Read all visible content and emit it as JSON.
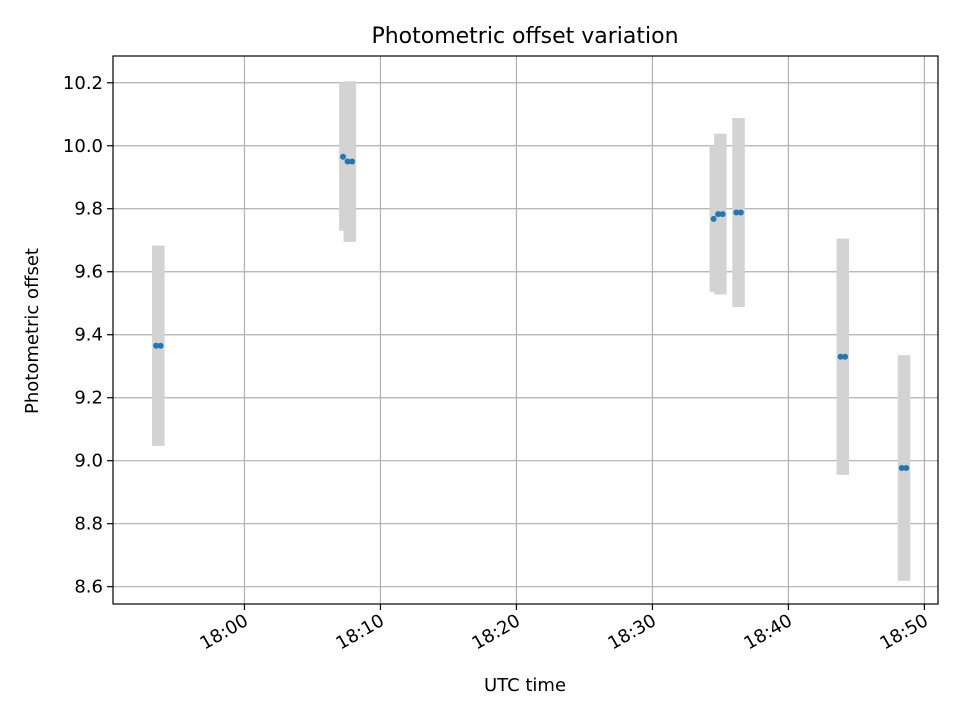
{
  "chart_data": {
    "type": "scatter",
    "title": "Photometric offset variation",
    "xlabel": "UTC time",
    "ylabel": "Photometric offset",
    "x_ticks": [
      "18:00",
      "18:10",
      "18:20",
      "18:30",
      "18:40",
      "18:50"
    ],
    "y_ticks": [
      "8.6",
      "8.8",
      "9.0",
      "9.2",
      "9.4",
      "9.6",
      "9.8",
      "10.0",
      "10.2"
    ],
    "xlim": [
      "17:50:20",
      "18:51:00"
    ],
    "ylim": [
      8.545,
      10.285
    ],
    "grid": true,
    "marker_color": "#1f77b4",
    "errorbar_color": "#d3d3d3",
    "points": [
      {
        "time": "17:53:30",
        "y": 9.365,
        "err": 0.318
      },
      {
        "time": "17:53:50",
        "y": 9.365,
        "err": 0.318
      },
      {
        "time": "18:07:15",
        "y": 9.965,
        "err": 0.235
      },
      {
        "time": "18:07:35",
        "y": 9.95,
        "err": 0.255
      },
      {
        "time": "18:07:55",
        "y": 9.95,
        "err": 0.255
      },
      {
        "time": "18:34:30",
        "y": 9.768,
        "err": 0.232
      },
      {
        "time": "18:34:50",
        "y": 9.783,
        "err": 0.255
      },
      {
        "time": "18:35:10",
        "y": 9.783,
        "err": 0.255
      },
      {
        "time": "18:36:10",
        "y": 9.788,
        "err": 0.3
      },
      {
        "time": "18:36:30",
        "y": 9.788,
        "err": 0.3
      },
      {
        "time": "18:43:50",
        "y": 9.33,
        "err": 0.375
      },
      {
        "time": "18:44:10",
        "y": 9.33,
        "err": 0.375
      },
      {
        "time": "18:48:20",
        "y": 8.977,
        "err": 0.358
      },
      {
        "time": "18:48:40",
        "y": 8.977,
        "err": 0.358
      }
    ]
  }
}
